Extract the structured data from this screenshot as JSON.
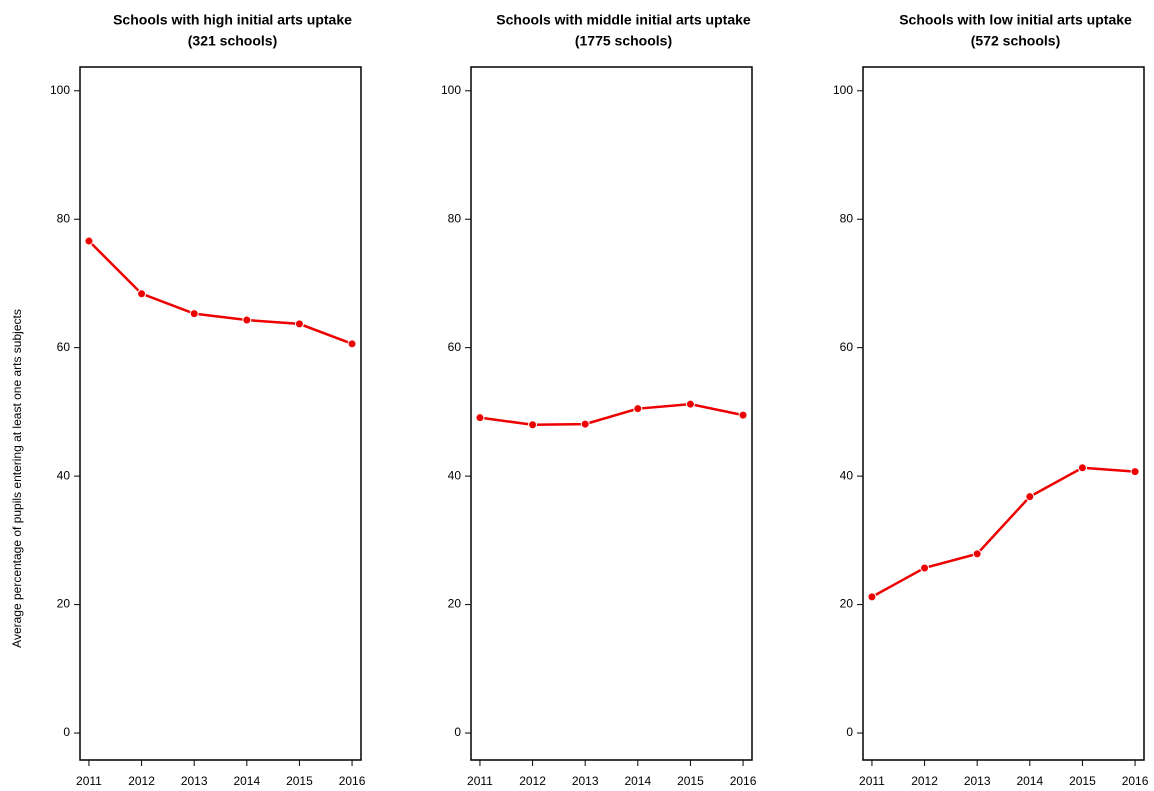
{
  "chart_data": [
    {
      "type": "line",
      "title": "Schools with high initial arts uptake",
      "subtitle": "(321 schools)",
      "y_label": "Average percentage of pupils entering at least one arts subjects",
      "x": [
        2011,
        2012,
        2013,
        2014,
        2015,
        2016
      ],
      "series": [
        {
          "color": "#ee0000",
          "values": [
            76.6,
            68.4,
            65.3,
            64.3,
            63.7,
            60.6
          ]
        }
      ],
      "xlim": [
        2010.83,
        2016.17
      ],
      "xticks": [
        2011,
        2012,
        2013,
        2014,
        2015,
        2016
      ],
      "ylim": [
        -4.2,
        103.7
      ],
      "yticks": [
        0,
        20,
        40,
        60,
        80,
        100
      ]
    },
    {
      "type": "line",
      "title": "Schools with middle initial arts uptake",
      "subtitle": "(1775 schools)",
      "x": [
        2011,
        2012,
        2013,
        2014,
        2015,
        2016
      ],
      "series": [
        {
          "color": "#ee0000",
          "values": [
            49.1,
            48.0,
            48.1,
            50.5,
            51.2,
            49.5
          ]
        }
      ],
      "xlim": [
        2010.83,
        2016.17
      ],
      "xticks": [
        2011,
        2012,
        2013,
        2014,
        2015,
        2016
      ],
      "ylim": [
        -4.2,
        103.7
      ],
      "yticks": [
        0,
        20,
        40,
        60,
        80,
        100
      ]
    },
    {
      "type": "line",
      "title": "Schools with low initial arts uptake",
      "subtitle": "(572 schools)",
      "x": [
        2011,
        2012,
        2013,
        2014,
        2015,
        2016
      ],
      "series": [
        {
          "color": "#ee0000",
          "values": [
            21.2,
            25.7,
            27.9,
            36.8,
            41.3,
            40.7
          ]
        }
      ],
      "xlim": [
        2010.83,
        2016.17
      ],
      "xticks": [
        2011,
        2012,
        2013,
        2014,
        2015,
        2016
      ],
      "ylim": [
        -4.2,
        103.7
      ],
      "yticks": [
        0,
        20,
        40,
        60,
        80,
        100
      ]
    }
  ]
}
